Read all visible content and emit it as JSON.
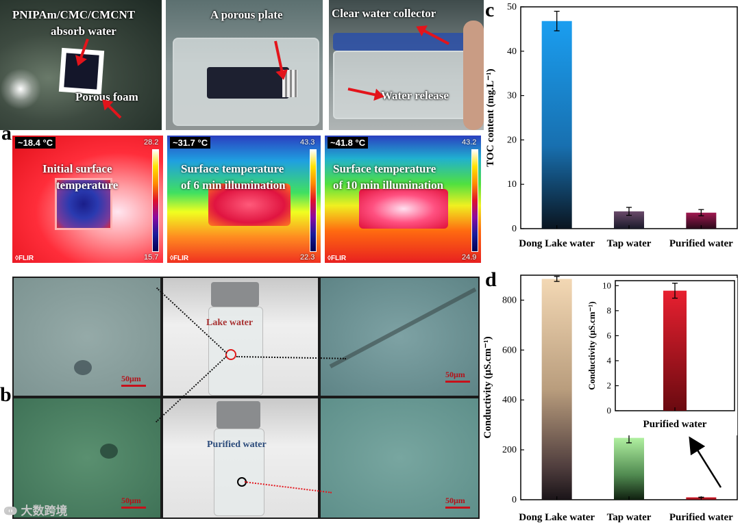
{
  "panel_labels": {
    "a": "a",
    "b": "b",
    "c": "c",
    "d": "d"
  },
  "panel_a": {
    "photo_captions": {
      "absorb_line1": "PNIPAm/CMC/CMCNT",
      "absorb_line2": "absorb water",
      "porous_foam": "Porous foam",
      "porous_plate": "A porous plate",
      "collector": "Clear water collector",
      "release": "Water release"
    },
    "thermal": [
      {
        "readout": "~18.4 °C",
        "max": "28.2",
        "min": "15.7",
        "line1": "Initial surface",
        "line2": "temperature",
        "brand": "◊FLIR"
      },
      {
        "readout": "~31.7 °C",
        "max": "43.3",
        "min": "22.3",
        "line1": "Surface temperature",
        "line2": "of 6 min illumination",
        "brand": "◊FLIR"
      },
      {
        "readout": "~41.8 °C",
        "max": "43.2",
        "min": "24.9",
        "line1": "Surface temperature",
        "line2": "of 10 min illumination",
        "brand": "◊FLIR"
      }
    ]
  },
  "panel_b": {
    "lake_label": "Lake water",
    "purified_label": "Purified water",
    "scale": "50μm",
    "watermark": "大数跨境"
  },
  "chart_data": [
    {
      "id": "c",
      "type": "bar",
      "categories": [
        "Dong Lake water",
        "Tap water",
        "Purified water"
      ],
      "values": [
        46.8,
        3.9,
        3.6
      ],
      "errors": [
        2.2,
        0.9,
        0.7
      ],
      "ylabel": "TOC content (mg.L⁻¹)",
      "ylim": [
        0,
        50
      ],
      "yticks": [
        0,
        10,
        20,
        30,
        40,
        50
      ],
      "colors": [
        "#1a8ee0",
        "#5a3a5a",
        "#8a1040"
      ]
    },
    {
      "id": "d",
      "type": "bar",
      "categories": [
        "Dong Lake water",
        "Tap water",
        "Purified water"
      ],
      "values": [
        885,
        248,
        9.6
      ],
      "errors": [
        10,
        20,
        0.6
      ],
      "ylabel": "Conductivity (μS.cm⁻¹)",
      "ylim": [
        0,
        900
      ],
      "yticks": [
        0,
        200,
        400,
        600,
        800
      ],
      "inset": {
        "category": "Purified water",
        "value": 9.6,
        "error": 0.6,
        "ylim": [
          0,
          10.4
        ],
        "yticks": [
          0,
          2,
          4,
          6,
          8,
          10
        ],
        "ylabel": "Conductivity (μS.cm⁻¹)"
      }
    }
  ]
}
